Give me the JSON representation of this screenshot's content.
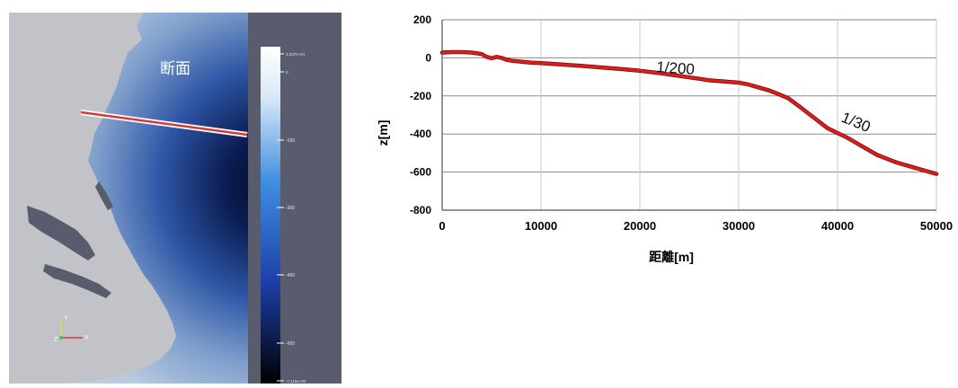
{
  "map": {
    "section_label": "断面",
    "axis_x_label": "X",
    "axis_y_label": "Y",
    "axis_z_label": "Z",
    "colorbar_ticks": [
      "3.037e+01",
      "0",
      "-150",
      "-300",
      "-450",
      "-600",
      "-7.115e+02"
    ],
    "colors": {
      "sea_deep": "#04091f",
      "sea_mid": "#2e56a6",
      "sea_shallow": "#c3d3e4",
      "land": "#c1c3c8",
      "background": "#585c6d",
      "section_line": "#d9383a"
    }
  },
  "chart_data": {
    "type": "line",
    "xlabel": "距離[m]",
    "ylabel": "z[m]",
    "xlim": [
      0,
      50000
    ],
    "ylim": [
      -800,
      200
    ],
    "xticks": [
      "0",
      "10000",
      "20000",
      "30000",
      "40000",
      "50000"
    ],
    "yticks": [
      "200",
      "0",
      "-200",
      "-400",
      "-600",
      "-800"
    ],
    "grid": true,
    "series": [
      {
        "color": "#e01b1b",
        "x": [
          0,
          1000,
          2000,
          3000,
          4000,
          4500,
          5000,
          5500,
          6000,
          6500,
          7000,
          8000,
          9000,
          10000,
          12000,
          14000,
          16000,
          18000,
          20000,
          22000,
          24000,
          26000,
          27000,
          28000,
          30000,
          31000,
          32000,
          33000,
          34000,
          35000,
          36000,
          37000,
          38000,
          39000,
          40000,
          41000,
          42000,
          43000,
          44000,
          45000,
          46000,
          47000,
          48000,
          49000,
          50000
        ],
        "y": [
          28,
          30,
          30,
          28,
          20,
          5,
          -2,
          5,
          0,
          -10,
          -15,
          -20,
          -25,
          -28,
          -35,
          -42,
          -50,
          -58,
          -68,
          -80,
          -95,
          -110,
          -118,
          -122,
          -130,
          -140,
          -155,
          -170,
          -190,
          -212,
          -250,
          -290,
          -330,
          -370,
          -395,
          -420,
          -450,
          -480,
          -510,
          -530,
          -550,
          -565,
          -580,
          -595,
          -610
        ]
      }
    ],
    "annotations": [
      "1/200",
      "1/30"
    ]
  }
}
